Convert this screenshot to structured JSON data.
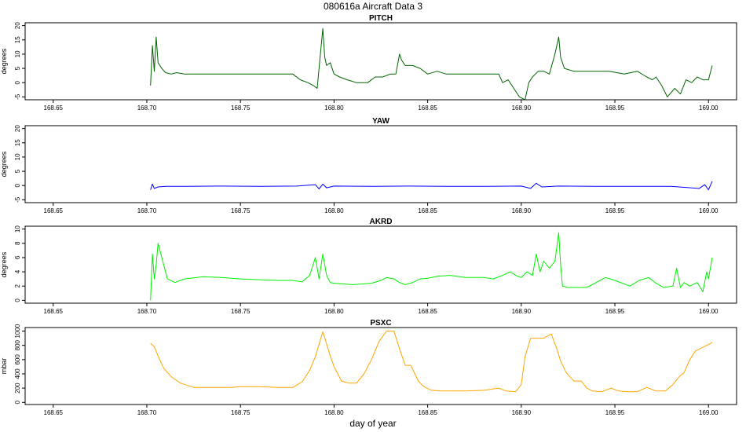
{
  "title": "080616a   Aircraft Data 3",
  "xlabel": "day of year",
  "chart_data": [
    {
      "type": "line",
      "title": "PITCH",
      "ylabel": "degrees",
      "color": "#006400",
      "xlim": [
        168.635,
        169.015
      ],
      "ylim": [
        -6,
        21
      ],
      "xticks": [
        168.65,
        168.7,
        168.75,
        168.8,
        168.85,
        168.9,
        168.95,
        169.0
      ],
      "xtick_labels": [
        "168.65",
        "168.70",
        "168.75",
        "168.80",
        "168.85",
        "168.90",
        "168.95",
        "169.00"
      ],
      "yticks": [
        -5,
        0,
        5,
        10,
        15,
        20
      ],
      "ytick_labels": [
        "-5",
        "0",
        "5",
        "10",
        "15",
        "20"
      ],
      "series": [
        {
          "x": [
            168.702,
            168.703,
            168.704,
            168.705,
            168.706,
            168.708,
            168.71,
            168.713,
            168.716,
            168.72,
            168.73,
            168.74,
            168.75,
            168.76,
            168.77,
            168.778,
            168.782,
            168.786,
            168.789,
            168.791,
            168.793,
            168.794,
            168.795,
            168.796,
            168.798,
            168.8,
            168.803,
            168.807,
            168.812,
            168.818,
            168.822,
            168.826,
            168.83,
            168.833,
            168.835,
            168.836,
            168.838,
            168.842,
            168.846,
            168.85,
            168.855,
            168.86,
            168.865,
            168.87,
            168.875,
            168.88,
            168.885,
            168.888,
            168.89,
            168.893,
            168.896,
            168.899,
            168.902,
            168.904,
            168.906,
            168.909,
            168.912,
            168.915,
            168.918,
            168.92,
            168.921,
            168.923,
            168.928,
            168.933,
            168.94,
            168.947,
            168.955,
            168.962,
            168.967,
            168.97,
            168.972,
            168.975,
            168.978,
            168.982,
            168.985,
            168.988,
            168.991,
            168.994,
            168.997,
            169.0,
            169.002
          ],
          "y": [
            -1,
            13,
            4,
            16,
            7,
            5,
            3.5,
            3,
            3.5,
            3,
            3,
            3,
            3,
            3,
            3,
            3,
            1,
            0,
            -1,
            -2,
            12,
            19,
            9,
            6,
            7,
            3,
            2,
            1,
            0,
            0,
            2,
            2,
            3,
            3,
            10,
            8,
            6,
            6,
            5,
            3,
            4,
            3,
            3,
            3,
            3,
            3,
            3,
            3,
            0,
            1,
            -2,
            -5,
            -6,
            0,
            2,
            4,
            4,
            3,
            10,
            16,
            9,
            5,
            4,
            4,
            4,
            4,
            3,
            4,
            2,
            1,
            2,
            -1,
            -5,
            -2,
            -4,
            1,
            0,
            2,
            1,
            1,
            6
          ]
        }
      ]
    },
    {
      "type": "line",
      "title": "YAW",
      "ylabel": "degrees",
      "color": "#0000ff",
      "xlim": [
        168.635,
        169.015
      ],
      "ylim": [
        -6,
        21
      ],
      "xticks": [
        168.65,
        168.7,
        168.75,
        168.8,
        168.85,
        168.9,
        168.95,
        169.0
      ],
      "xtick_labels": [
        "168.65",
        "168.70",
        "168.75",
        "168.80",
        "168.85",
        "168.90",
        "168.95",
        "169.00"
      ],
      "yticks": [
        -5,
        0,
        5,
        10,
        15,
        20
      ],
      "ytick_labels": [
        "-5",
        "0",
        "5",
        "10",
        "15",
        "20"
      ],
      "series": [
        {
          "x": [
            168.702,
            168.703,
            168.704,
            168.706,
            168.71,
            168.72,
            168.74,
            168.76,
            168.78,
            168.79,
            168.792,
            168.794,
            168.796,
            168.8,
            168.82,
            168.84,
            168.86,
            168.88,
            168.9,
            168.905,
            168.908,
            168.911,
            168.92,
            168.94,
            168.96,
            168.98,
            168.995,
            168.998,
            169.0,
            169.002
          ],
          "y": [
            -1.5,
            0.5,
            -1,
            -0.5,
            -0.3,
            -0.3,
            -0.2,
            -0.3,
            -0.2,
            0.3,
            -1.2,
            0.5,
            -0.8,
            -0.2,
            -0.3,
            -0.2,
            -0.3,
            -0.3,
            -0.2,
            -1,
            0.8,
            -0.5,
            -0.2,
            -0.3,
            -0.3,
            -0.3,
            -1,
            0.3,
            -1.5,
            1.5
          ]
        }
      ]
    },
    {
      "type": "line",
      "title": "AKRD",
      "ylabel": "degrees",
      "color": "#00ee00",
      "xlim": [
        168.635,
        169.015
      ],
      "ylim": [
        -0.4,
        10.4
      ],
      "xticks": [
        168.65,
        168.7,
        168.75,
        168.8,
        168.85,
        168.9,
        168.95,
        169.0
      ],
      "xtick_labels": [
        "168.65",
        "168.70",
        "168.75",
        "168.80",
        "168.85",
        "168.90",
        "168.95",
        "169.00"
      ],
      "yticks": [
        0,
        2,
        4,
        6,
        8,
        10
      ],
      "ytick_labels": [
        "0",
        "2",
        "4",
        "6",
        "8",
        "10"
      ],
      "series": [
        {
          "x": [
            168.702,
            168.703,
            168.704,
            168.705,
            168.706,
            168.708,
            168.711,
            168.715,
            168.72,
            168.73,
            168.74,
            168.75,
            168.76,
            168.77,
            168.778,
            168.783,
            168.787,
            168.79,
            168.792,
            168.794,
            168.796,
            168.798,
            168.8,
            168.81,
            168.82,
            168.825,
            168.828,
            168.832,
            168.835,
            168.838,
            168.842,
            168.846,
            168.85,
            168.856,
            168.862,
            168.87,
            168.88,
            168.885,
            168.89,
            168.894,
            168.897,
            168.9,
            168.903,
            168.906,
            168.908,
            168.91,
            168.912,
            168.915,
            168.918,
            168.92,
            168.921,
            168.922,
            168.925,
            168.93,
            168.935,
            168.94,
            168.945,
            168.95,
            168.958,
            168.963,
            168.968,
            168.972,
            168.976,
            168.981,
            168.983,
            168.985,
            168.987,
            168.99,
            168.994,
            168.997,
            168.999,
            169.0,
            169.002
          ],
          "y": [
            0,
            6.5,
            3,
            5,
            8,
            6,
            3,
            2.5,
            3,
            3.3,
            3.2,
            3,
            2.9,
            2.8,
            2.8,
            2.6,
            3.5,
            6,
            3,
            6.5,
            3.5,
            2.5,
            2.4,
            2.2,
            2.4,
            2.8,
            3.2,
            3,
            2.5,
            2.2,
            2.5,
            3,
            3.1,
            3.4,
            3.5,
            3.2,
            3.2,
            3,
            3.5,
            4,
            3.5,
            3.2,
            4,
            3.5,
            6.5,
            4,
            5.5,
            4.5,
            5.5,
            9.5,
            5,
            2,
            1.8,
            1.8,
            1.8,
            2.5,
            3.2,
            2.8,
            2,
            2.8,
            3.2,
            2.4,
            1.8,
            2,
            4.5,
            1.8,
            2.5,
            2,
            2.5,
            1.2,
            4,
            3,
            6
          ]
        }
      ]
    },
    {
      "type": "line",
      "title": "PSXC",
      "ylabel": "mbar",
      "color": "#ffa500",
      "xlim": [
        168.635,
        169.015
      ],
      "ylim": [
        -30,
        1050
      ],
      "xticks": [
        168.65,
        168.7,
        168.75,
        168.8,
        168.85,
        168.9,
        168.95,
        169.0
      ],
      "xtick_labels": [
        "168.65",
        "168.70",
        "168.75",
        "168.80",
        "168.85",
        "168.90",
        "168.95",
        "169.00"
      ],
      "yticks": [
        0,
        200,
        400,
        600,
        800,
        1000
      ],
      "ytick_labels": [
        "0",
        "200",
        "400",
        "600",
        "800",
        "1000"
      ],
      "series": [
        {
          "x": [
            168.702,
            168.704,
            168.706,
            168.709,
            168.713,
            168.718,
            168.725,
            168.735,
            168.745,
            168.75,
            168.76,
            168.77,
            168.778,
            168.783,
            168.787,
            168.79,
            168.794,
            168.796,
            168.798,
            168.8,
            168.804,
            168.808,
            168.812,
            168.816,
            168.82,
            168.824,
            168.828,
            168.832,
            168.835,
            168.838,
            168.841,
            168.845,
            168.848,
            168.852,
            168.857,
            168.862,
            168.87,
            168.88,
            168.888,
            168.892,
            168.897,
            168.9,
            168.902,
            168.905,
            168.908,
            168.912,
            168.916,
            168.919,
            168.921,
            168.924,
            168.928,
            168.932,
            168.935,
            168.938,
            168.943,
            168.948,
            168.952,
            168.957,
            168.962,
            168.967,
            168.972,
            168.977,
            168.981,
            168.984,
            168.987,
            168.99,
            168.993,
            168.996,
            168.999,
            169.002
          ],
          "y": [
            830,
            780,
            650,
            480,
            360,
            270,
            210,
            210,
            210,
            220,
            220,
            210,
            210,
            290,
            450,
            640,
            990,
            820,
            650,
            500,
            300,
            270,
            270,
            400,
            600,
            850,
            1000,
            1000,
            750,
            520,
            520,
            300,
            220,
            170,
            160,
            160,
            160,
            170,
            200,
            160,
            150,
            250,
            640,
            900,
            900,
            900,
            960,
            750,
            580,
            420,
            300,
            300,
            200,
            160,
            150,
            200,
            160,
            150,
            150,
            210,
            160,
            160,
            250,
            350,
            420,
            600,
            720,
            760,
            800,
            840
          ]
        }
      ]
    }
  ]
}
